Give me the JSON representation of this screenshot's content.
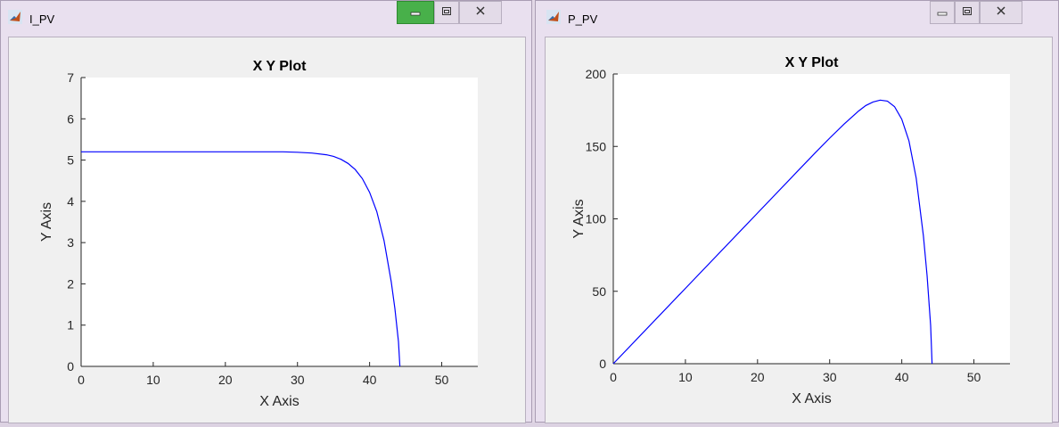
{
  "windows": [
    {
      "title": "I_PV",
      "chart_data": {
        "type": "line",
        "title": "X Y Plot",
        "xlabel": "X Axis",
        "ylabel": "Y Axis",
        "xlim": [
          0,
          55
        ],
        "ylim": [
          0,
          7
        ],
        "xticks": [
          "0",
          "10",
          "20",
          "30",
          "40",
          "50"
        ],
        "yticks": [
          "0",
          "1",
          "2",
          "3",
          "4",
          "5",
          "6",
          "7"
        ],
        "series": [
          {
            "color": "#0000ff",
            "x": [
              0,
              10,
              20,
              28,
              30,
              32,
              34,
              35,
              36,
              37,
              38,
              39,
              40,
              41,
              42,
              43,
              43.5,
              44,
              44.2
            ],
            "y": [
              5.2,
              5.2,
              5.2,
              5.2,
              5.19,
              5.17,
              5.13,
              5.09,
              5.02,
              4.92,
              4.77,
              4.55,
              4.22,
              3.75,
              3.05,
              2.05,
              1.4,
              0.6,
              0.0
            ]
          }
        ]
      }
    },
    {
      "title": "P_PV",
      "chart_data": {
        "type": "line",
        "title": "X Y Plot",
        "xlabel": "X Axis",
        "ylabel": "Y Axis",
        "xlim": [
          0,
          55
        ],
        "ylim": [
          0,
          200
        ],
        "xticks": [
          "0",
          "10",
          "20",
          "30",
          "40",
          "50"
        ],
        "yticks": [
          "0",
          "50",
          "100",
          "150",
          "200"
        ],
        "series": [
          {
            "color": "#0000ff",
            "x": [
              0,
              10,
              20,
              28,
              30,
              32,
              34,
              35,
              36,
              37,
              38,
              39,
              40,
              41,
              42,
              43,
              43.5,
              44,
              44.2
            ],
            "y": [
              0,
              52,
              104,
              145.6,
              155.7,
              165.4,
              174.4,
              178.2,
              180.7,
              182.0,
              181.3,
              177.5,
              168.8,
              153.8,
              128.1,
              88.2,
              60.9,
              26.4,
              0
            ]
          }
        ]
      }
    }
  ],
  "colors": {
    "plot_line": "#0000ff",
    "axes_bg": "#ffffff",
    "figure_bg": "#f0f0f0",
    "title_bar": "#e9e0ef"
  },
  "icons": {
    "app": "matlab-icon",
    "minimize": "minimize-icon",
    "maximize": "maximize-icon",
    "close": "close-icon"
  }
}
